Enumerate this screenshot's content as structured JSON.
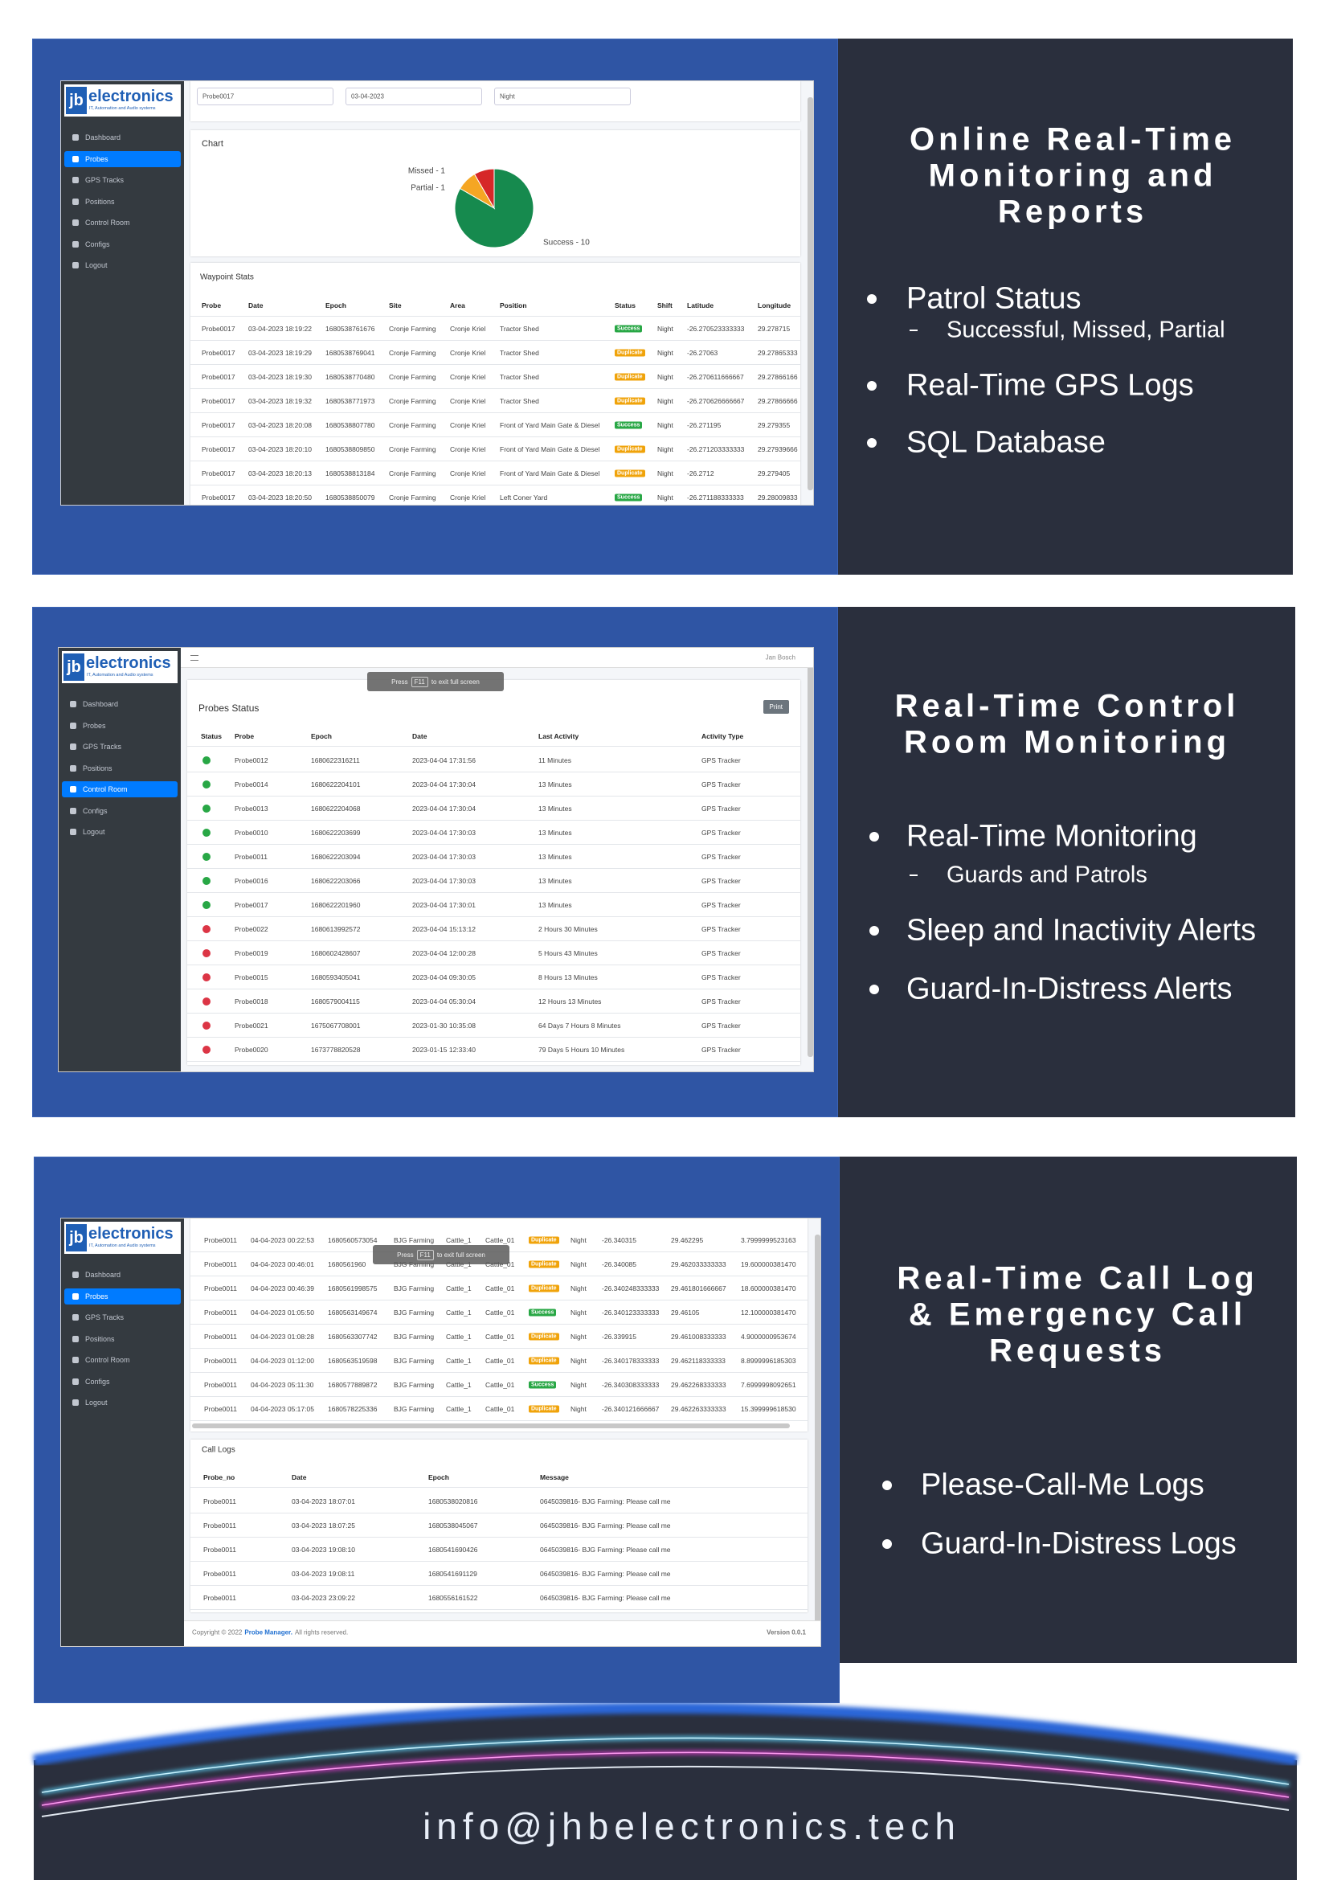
{
  "logo": {
    "mark": "jb",
    "name": "electronics",
    "tagline": "IT, Automation and Audio systems"
  },
  "menu": [
    "Dashboard",
    "Probes",
    "GPS Tracks",
    "Positions",
    "Control Room",
    "Configs",
    "Logout"
  ],
  "badge_colors": {
    "Success": "#28a745",
    "Duplicate": "#f0a30a"
  },
  "panels": [
    {
      "title_lines": [
        "Online Real-Time",
        "Monitoring and",
        "Reports"
      ],
      "bullets": [
        {
          "text": "Patrol Status",
          "sub": "Successful, Missed, Partial"
        },
        {
          "text": "Real-Time GPS Logs"
        },
        {
          "text": "SQL Database"
        }
      ],
      "screenshot": {
        "active_menu": 1,
        "filters": [
          "Probe0017",
          "03-04-2023",
          "Night"
        ],
        "chart_title": "Chart",
        "pie": {
          "values": [
            1,
            1,
            10
          ],
          "value_labels": [
            "Missed - 1",
            "Partial - 1",
            "Success - 10"
          ],
          "colors": [
            "#d62728",
            "#f5a623",
            "#168a4e"
          ]
        },
        "table_title": "Waypoint Stats",
        "columns": [
          "Probe",
          "Date",
          "Epoch",
          "Site",
          "Area",
          "Position",
          "Status",
          "Shift",
          "Latitude",
          "Longitude"
        ],
        "rows": [
          [
            "Probe0017",
            "03-04-2023 18:19:22",
            "1680538761676",
            "Cronje Farming",
            "Cronje Kriel",
            "Tractor Shed",
            "Success",
            "Night",
            "-26.270523333333",
            "29.278715"
          ],
          [
            "Probe0017",
            "03-04-2023 18:19:29",
            "1680538769041",
            "Cronje Farming",
            "Cronje Kriel",
            "Tractor Shed",
            "Duplicate",
            "Night",
            "-26.27063",
            "29.27865333"
          ],
          [
            "Probe0017",
            "03-04-2023 18:19:30",
            "1680538770480",
            "Cronje Farming",
            "Cronje Kriel",
            "Tractor Shed",
            "Duplicate",
            "Night",
            "-26.270611666667",
            "29.27866166"
          ],
          [
            "Probe0017",
            "03-04-2023 18:19:32",
            "1680538771973",
            "Cronje Farming",
            "Cronje Kriel",
            "Tractor Shed",
            "Duplicate",
            "Night",
            "-26.270626666667",
            "29.27866666"
          ],
          [
            "Probe0017",
            "03-04-2023 18:20:08",
            "1680538807780",
            "Cronje Farming",
            "Cronje Kriel",
            "Front of Yard Main Gate & Diesel",
            "Success",
            "Night",
            "-26.271195",
            "29.279355"
          ],
          [
            "Probe0017",
            "03-04-2023 18:20:10",
            "1680538809850",
            "Cronje Farming",
            "Cronje Kriel",
            "Front of Yard Main Gate & Diesel",
            "Duplicate",
            "Night",
            "-26.271203333333",
            "29.27939666"
          ],
          [
            "Probe0017",
            "03-04-2023 18:20:13",
            "1680538813184",
            "Cronje Farming",
            "Cronje Kriel",
            "Front of Yard Main Gate & Diesel",
            "Duplicate",
            "Night",
            "-26.2712",
            "29.279405"
          ],
          [
            "Probe0017",
            "03-04-2023 18:20:50",
            "1680538850079",
            "Cronje Farming",
            "Cronje Kriel",
            "Left Coner Yard",
            "Success",
            "Night",
            "-26.271188333333",
            "29.28009833"
          ]
        ]
      }
    },
    {
      "title_lines": [
        "Real-Time Control",
        "Room Monitoring"
      ],
      "bullets": [
        {
          "text": "Real-Time Monitoring",
          "sub": "Guards and Patrols"
        },
        {
          "text": "Sleep and Inactivity Alerts"
        },
        {
          "text": "Guard-In-Distress Alerts"
        }
      ],
      "screenshot": {
        "active_menu": 4,
        "user": "Jan Bosch",
        "overlay": [
          "Press",
          "F11",
          "to exit full screen"
        ],
        "card_title": "Probes Status",
        "button": "Print",
        "columns": [
          "Status",
          "Probe",
          "Epoch",
          "Date",
          "Last Activity",
          "Activity Type"
        ],
        "status_colors": [
          "#28a745",
          "#28a745",
          "#28a745",
          "#28a745",
          "#28a745",
          "#28a745",
          "#28a745",
          "#dc3545",
          "#dc3545",
          "#dc3545",
          "#dc3545",
          "#dc3545",
          "#dc3545"
        ],
        "rows": [
          [
            "Probe0012",
            "1680622316211",
            "2023-04-04 17:31:56",
            "11 Minutes",
            "GPS Tracker"
          ],
          [
            "Probe0014",
            "1680622204101",
            "2023-04-04 17:30:04",
            "13 Minutes",
            "GPS Tracker"
          ],
          [
            "Probe0013",
            "1680622204068",
            "2023-04-04 17:30:04",
            "13 Minutes",
            "GPS Tracker"
          ],
          [
            "Probe0010",
            "1680622203699",
            "2023-04-04 17:30:03",
            "13 Minutes",
            "GPS Tracker"
          ],
          [
            "Probe0011",
            "1680622203094",
            "2023-04-04 17:30:03",
            "13 Minutes",
            "GPS Tracker"
          ],
          [
            "Probe0016",
            "1680622203066",
            "2023-04-04 17:30:03",
            "13 Minutes",
            "GPS Tracker"
          ],
          [
            "Probe0017",
            "1680622201960",
            "2023-04-04 17:30:01",
            "13 Minutes",
            "GPS Tracker"
          ],
          [
            "Probe0022",
            "1680613992572",
            "2023-04-04 15:13:12",
            "2 Hours 30 Minutes",
            "GPS Tracker"
          ],
          [
            "Probe0019",
            "1680602428607",
            "2023-04-04 12:00:28",
            "5 Hours 43 Minutes",
            "GPS Tracker"
          ],
          [
            "Probe0015",
            "1680593405041",
            "2023-04-04 09:30:05",
            "8 Hours 13 Minutes",
            "GPS Tracker"
          ],
          [
            "Probe0018",
            "1680579004115",
            "2023-04-04 05:30:04",
            "12 Hours 13 Minutes",
            "GPS Tracker"
          ],
          [
            "Probe0021",
            "1675067708001",
            "2023-01-30 10:35:08",
            "64 Days 7 Hours 8 Minutes",
            "GPS Tracker"
          ],
          [
            "Probe0020",
            "1673778820528",
            "2023-01-15 12:33:40",
            "79 Days 5 Hours 10 Minutes",
            "GPS Tracker"
          ]
        ]
      }
    },
    {
      "title_lines": [
        "Real-Time Call Log",
        "& Emergency Call",
        "Requests"
      ],
      "bullets": [
        {
          "text": "Please-Call-Me Logs"
        },
        {
          "text": "Guard-In-Distress Logs"
        }
      ],
      "screenshot": {
        "active_menu": 1,
        "overlay": [
          "Press",
          "F11",
          "to exit full screen"
        ],
        "rows": [
          [
            "Probe0011",
            "04-04-2023 00:22:53",
            "1680560573054",
            "BJG Farming",
            "Cattle_1",
            "Cattle_01",
            "Duplicate",
            "Night",
            "-26.340315",
            "29.462295",
            "3.7999999523163"
          ],
          [
            "Probe0011",
            "04-04-2023 00:46:01",
            "1680561960",
            "BJG Farming",
            "Cattle_1",
            "Cattle_01",
            "Duplicate",
            "Night",
            "-26.340085",
            "29.462033333333",
            "19.600000381470"
          ],
          [
            "Probe0011",
            "04-04-2023 00:46:39",
            "1680561998575",
            "BJG Farming",
            "Cattle_1",
            "Cattle_01",
            "Duplicate",
            "Night",
            "-26.340248333333",
            "29.461801666667",
            "18.600000381470"
          ],
          [
            "Probe0011",
            "04-04-2023 01:05:50",
            "1680563149674",
            "BJG Farming",
            "Cattle_1",
            "Cattle_01",
            "Success",
            "Night",
            "-26.340123333333",
            "29.46105",
            "12.100000381470"
          ],
          [
            "Probe0011",
            "04-04-2023 01:08:28",
            "1680563307742",
            "BJG Farming",
            "Cattle_1",
            "Cattle_01",
            "Duplicate",
            "Night",
            "-26.339915",
            "29.461008333333",
            "4.9000000953674"
          ],
          [
            "Probe0011",
            "04-04-2023 01:12:00",
            "1680563519598",
            "BJG Farming",
            "Cattle_1",
            "Cattle_01",
            "Duplicate",
            "Night",
            "-26.340178333333",
            "29.462118333333",
            "8.8999996185303"
          ],
          [
            "Probe0011",
            "04-04-2023 05:11:30",
            "1680577889872",
            "BJG Farming",
            "Cattle_1",
            "Cattle_01",
            "Success",
            "Night",
            "-26.340308333333",
            "29.462268333333",
            "7.6999998092651"
          ],
          [
            "Probe0011",
            "04-04-2023 05:17:05",
            "1680578225336",
            "BJG Farming",
            "Cattle_1",
            "Cattle_01",
            "Duplicate",
            "Night",
            "-26.340121666667",
            "29.462263333333",
            "15.399999618530"
          ]
        ],
        "table2_title": "Call Logs",
        "columns2": [
          "Probe_no",
          "Date",
          "Epoch",
          "Message"
        ],
        "rows2": [
          [
            "Probe0011",
            "03-04-2023 18:07:01",
            "1680538020816",
            "0645039816- BJG Farming: Please call me"
          ],
          [
            "Probe0011",
            "03-04-2023 18:07:25",
            "1680538045067",
            "0645039816- BJG Farming: Please call me"
          ],
          [
            "Probe0011",
            "03-04-2023 19:08:10",
            "1680541690426",
            "0645039816- BJG Farming: Please call me"
          ],
          [
            "Probe0011",
            "03-04-2023 19:08:11",
            "1680541691129",
            "0645039816- BJG Farming: Please call me"
          ],
          [
            "Probe0011",
            "03-04-2023 23:09:22",
            "1680556161522",
            "0645039816- BJG Farming: Please call me"
          ]
        ],
        "footer": {
          "copyright": "Copyright © 2022",
          "brand": "Probe Manager.",
          "rights": "All rights reserved.",
          "version": "Version 0.0.1"
        }
      }
    }
  ],
  "contact": "info@jhbelectronics.tech"
}
